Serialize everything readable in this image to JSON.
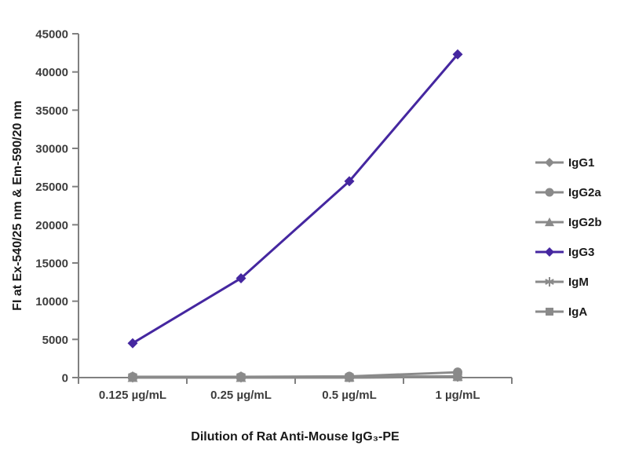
{
  "chart_data": {
    "type": "line",
    "title": "",
    "xlabel": "Dilution of Rat Anti-Mouse IgG₃-PE",
    "ylabel": "FI at Ex-540/25 nm & Em-590/20 nm",
    "categories": [
      "0.125 µg/mL",
      "0.25 µg/mL",
      "0.5 µg/mL",
      "1 µg/mL"
    ],
    "ylim": [
      0,
      45000
    ],
    "ytick_step": 5000,
    "ytick_labels": [
      "0",
      "5000",
      "10000",
      "15000",
      "20000",
      "25000",
      "30000",
      "35000",
      "40000",
      "45000"
    ],
    "grid": false,
    "legend_position": "right",
    "series": [
      {
        "name": "IgG1",
        "marker": "diamond",
        "color": "#8a8a8a",
        "values": [
          0,
          0,
          0,
          100
        ]
      },
      {
        "name": "IgG2a",
        "marker": "circle",
        "color": "#8a8a8a",
        "values": [
          100,
          100,
          150,
          700
        ]
      },
      {
        "name": "IgG2b",
        "marker": "triangle",
        "color": "#8a8a8a",
        "values": [
          0,
          0,
          50,
          150
        ]
      },
      {
        "name": "IgG3",
        "marker": "diamond",
        "color": "#4527a0",
        "values": [
          4500,
          13000,
          25700,
          42300
        ]
      },
      {
        "name": "IgM",
        "marker": "asterisk",
        "color": "#8a8a8a",
        "values": [
          100,
          100,
          100,
          150
        ]
      },
      {
        "name": "IgA",
        "marker": "square",
        "color": "#8a8a8a",
        "values": [
          0,
          0,
          0,
          100
        ]
      }
    ]
  },
  "colors": {
    "axis": "#808080",
    "tick_text": "#3d3d3d",
    "title_text": "#1a1a1a",
    "background": "#ffffff",
    "accent_purple": "#4527a0",
    "series_gray": "#8a8a8a"
  }
}
